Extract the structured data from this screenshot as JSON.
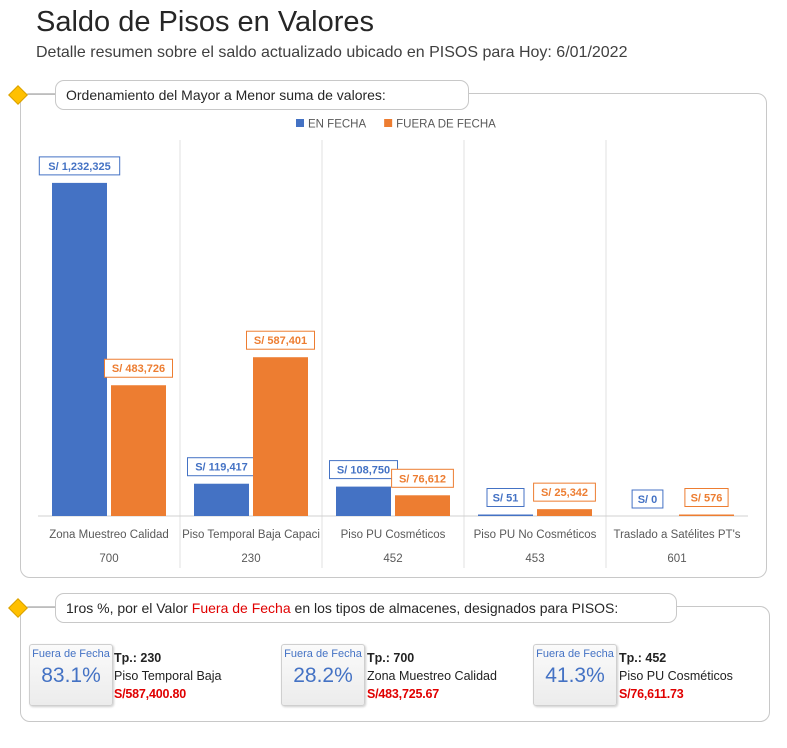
{
  "header": {
    "title": "Saldo de Pisos en Valores",
    "subtitle": "Detalle resumen sobre el saldo actualizado ubicado en PISOS para Hoy: 6/01/2022"
  },
  "chart_section": {
    "heading": "Ordenamiento del Mayor a Menor suma de valores:"
  },
  "chart_data": {
    "type": "bar",
    "categories": [
      "Zona Muestreo Calidad",
      "Piso Temporal Baja Capaci",
      "Piso PU Cosméticos",
      "Piso PU No Cosméticos",
      "Traslado a Satélites PT's"
    ],
    "category_codes": [
      "700",
      "230",
      "452",
      "453",
      "601"
    ],
    "series": [
      {
        "name": "EN FECHA",
        "color": "#4472c4",
        "values": [
          1232325,
          119417,
          108750,
          51,
          0
        ],
        "labels": [
          "S/ 1,232,325",
          "S/ 119,417",
          "S/ 108,750",
          "S/ 51",
          "S/ 0"
        ]
      },
      {
        "name": "FUERA DE FECHA",
        "color": "#ed7d31",
        "values": [
          483726,
          587401,
          76612,
          25342,
          576
        ],
        "labels": [
          "S/ 483,726",
          "S/ 587,401",
          "S/ 76,612",
          "S/ 25,342",
          "S/ 576"
        ]
      }
    ],
    "ylim": [
      0,
      1280000
    ],
    "legend_position": "top-center",
    "grid": false
  },
  "summary": {
    "heading_pre": "1ros %, por el Valor ",
    "heading_highlight": "Fuera de Fecha",
    "heading_post": " en los tipos de almacenes, designados para PISOS:",
    "highlight_color": "#e00000",
    "cards": [
      {
        "label": "Fuera de Fecha",
        "percent": "83.1%",
        "tp": "Tp.: 230",
        "name": "Piso Temporal Baja",
        "amount": "S/587,400.80"
      },
      {
        "label": "Fuera de Fecha",
        "percent": "28.2%",
        "tp": "Tp.: 700",
        "name": "Zona Muestreo Calidad",
        "amount": "S/483,725.67"
      },
      {
        "label": "Fuera de Fecha",
        "percent": "41.3%",
        "tp": "Tp.: 452",
        "name": "Piso PU Cosméticos",
        "amount": "S/76,611.73"
      }
    ]
  }
}
